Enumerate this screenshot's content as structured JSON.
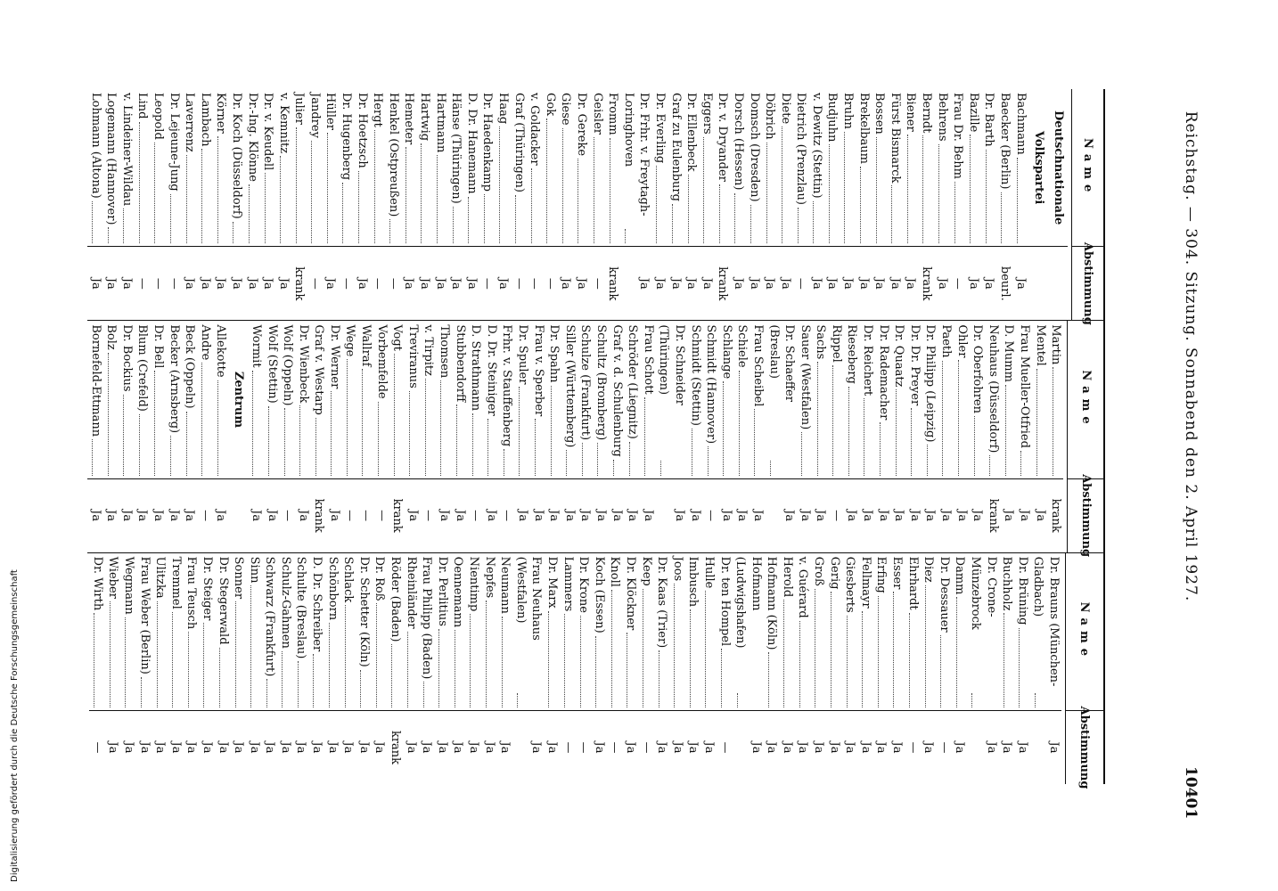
{
  "header": {
    "title": "Reichstag. — 304. Sitzung. Sonnabend den 2. April 1927.",
    "page": "10401"
  },
  "table": {
    "name_header": "Name",
    "vote_header": "Abstimmung",
    "columns": [
      [
        {
          "section": "Deutschnationale Volkspartei"
        },
        {
          "name": "Bachmann",
          "vote": "Ja"
        },
        {
          "name": "Baecker (Berlin)",
          "vote": "beurl."
        },
        {
          "name": "Dr. Barth",
          "vote": "Ja"
        },
        {
          "name": "Bazille",
          "vote": "Ja"
        },
        {
          "name": "Frau Dr. Behm",
          "vote": "—"
        },
        {
          "name": "Behrens",
          "vote": "Ja"
        },
        {
          "name": "Berndt",
          "vote": "krank"
        },
        {
          "name": "Biener",
          "vote": "Ja"
        },
        {
          "name": "Fürst Bismarck",
          "vote": "Ja"
        },
        {
          "name": "Bossen",
          "vote": "Ja"
        },
        {
          "name": "Brekelbaum",
          "vote": "Ja"
        },
        {
          "name": "Bruhn",
          "vote": "Ja"
        },
        {
          "name": "Budjuhn",
          "vote": "Ja"
        },
        {
          "name": "v. Dewitz (Stettin)",
          "vote": "Ja"
        },
        {
          "name": "Dietrich (Prenzlau)",
          "vote": "—"
        },
        {
          "name": "Diete",
          "vote": "Ja"
        },
        {
          "name": "Döbrich",
          "vote": "Ja"
        },
        {
          "name": "Domsch (Dresden)",
          "vote": "Ja"
        },
        {
          "name": "Dorsch (Hessen)",
          "vote": "Ja"
        },
        {
          "name": "Dr. v. Dryander",
          "vote": "krank"
        },
        {
          "name": "Eggers",
          "vote": "Ja"
        },
        {
          "name": "Dr. Ellenbeck",
          "vote": "Ja"
        },
        {
          "name": "Graf zu Eulenburg",
          "vote": "Ja"
        },
        {
          "name": "Dr. Everling",
          "vote": "Ja"
        },
        {
          "name": "Dr. Frhr. v. Freytagh-Loringhoven",
          "vote": "Ja"
        },
        {
          "name": "Fromm",
          "vote": "krank"
        },
        {
          "name": "Geisler",
          "vote": "—"
        },
        {
          "name": "Dr. Gereke",
          "vote": "Ja"
        },
        {
          "name": "Giese",
          "vote": "Ja"
        },
        {
          "name": "Gok",
          "vote": "—"
        },
        {
          "name": "v. Goldacker",
          "vote": "—"
        },
        {
          "name": "Graf (Thüringen)",
          "vote": "—"
        },
        {
          "name": "Haag",
          "vote": "Ja"
        },
        {
          "name": "Dr. Haedenkamp",
          "vote": "—"
        },
        {
          "name": "D. Dr. Hanemann",
          "vote": "Ja"
        },
        {
          "name": "Hänse (Thüringen)",
          "vote": "Ja"
        },
        {
          "name": "Hartmann",
          "vote": "Ja"
        },
        {
          "name": "Hartwig",
          "vote": "Ja"
        },
        {
          "name": "Hemeter",
          "vote": "Ja"
        },
        {
          "name": "Henkel (Ostpreußen)",
          "vote": "—"
        },
        {
          "name": "Hergt",
          "vote": "—"
        },
        {
          "name": "Dr. Hoetzsch",
          "vote": "Ja"
        },
        {
          "name": "Dr. Hugenberg",
          "vote": "—"
        },
        {
          "name": "Hüller",
          "vote": "Ja"
        },
        {
          "name": "Jandrey",
          "vote": "—"
        },
        {
          "name": "Julier",
          "vote": "krank"
        },
        {
          "name": "v. Kemnitz",
          "vote": "Ja"
        },
        {
          "name": "Dr. v. Keudell",
          "vote": "Ja"
        },
        {
          "name": "Dr.-Ing. Klönne",
          "vote": "Ja"
        },
        {
          "name": "Dr. Koch (Düsseldorf)",
          "vote": "Ja"
        },
        {
          "name": "Körner",
          "vote": "Ja"
        },
        {
          "name": "Lambach",
          "vote": "Ja"
        },
        {
          "name": "Laverrenz",
          "vote": "Ja"
        },
        {
          "name": "Dr. Lejeune-Jung",
          "vote": "—"
        },
        {
          "name": "Leopold",
          "vote": "—"
        },
        {
          "name": "Lind",
          "vote": "—"
        },
        {
          "name": "v. Lindeiner-Wildau",
          "vote": "Ja"
        },
        {
          "name": "Logemann (Hannover)",
          "vote": "Ja"
        },
        {
          "name": "Lohmann (Altona)",
          "vote": "Ja"
        }
      ],
      [
        {
          "name": "Martin",
          "vote": "krank"
        },
        {
          "name": "Mentel",
          "vote": "Ja"
        },
        {
          "name": "Frau Mueller-Otfried",
          "vote": "Ja"
        },
        {
          "name": "D. Mumm",
          "vote": "Ja"
        },
        {
          "name": "Neuhaus (Düsseldorf)",
          "vote": "krank"
        },
        {
          "name": "Dr. Oberfohren",
          "vote": "Ja"
        },
        {
          "name": "Ohler",
          "vote": "Ja"
        },
        {
          "name": "Paeth",
          "vote": "Ja"
        },
        {
          "name": "Dr. Philipp (Leipzig)",
          "vote": "Ja"
        },
        {
          "name": "Dr. Dr. Preyer",
          "vote": "Ja"
        },
        {
          "name": "Dr. Quaatz",
          "vote": "Ja"
        },
        {
          "name": "Dr. Rademacher",
          "vote": "Ja"
        },
        {
          "name": "Dr. Reichert",
          "vote": "Ja"
        },
        {
          "name": "Rieseberg",
          "vote": "Ja"
        },
        {
          "name": "Rippel",
          "vote": "—"
        },
        {
          "name": "Sachs",
          "vote": "Ja"
        },
        {
          "name": "Sauer (Westfalen)",
          "vote": "Ja"
        },
        {
          "name": "Dr. Schaeffer (Breslau)",
          "vote": "Ja"
        },
        {
          "name": "Frau Scheibel",
          "vote": "Ja"
        },
        {
          "name": "Schiele",
          "vote": "Ja"
        },
        {
          "name": "Schlange",
          "vote": "Ja"
        },
        {
          "name": "Schmidt (Hannover)",
          "vote": "—"
        },
        {
          "name": "Schmidt (Stettin)",
          "vote": "Ja"
        },
        {
          "name": "Dr. Schneider (Thüringen)",
          "vote": "Ja"
        },
        {
          "name": "Frau Schott",
          "vote": "Ja"
        },
        {
          "name": "Schröder (Liegnitz)",
          "vote": "Ja"
        },
        {
          "name": "Graf v. d. Schulenburg",
          "vote": "Ja"
        },
        {
          "name": "Schultz (Bromberg)",
          "vote": "Ja"
        },
        {
          "name": "Schulze (Frankfurt)",
          "vote": "Ja"
        },
        {
          "name": "Siller (Württemberg)",
          "vote": "Ja"
        },
        {
          "name": "Dr. Spahn",
          "vote": "Ja"
        },
        {
          "name": "Frau v. Sperber",
          "vote": "Ja"
        },
        {
          "name": "Dr. Spuler",
          "vote": "Ja"
        },
        {
          "name": "Frhr. v. Stauffenberg",
          "vote": "—"
        },
        {
          "name": "D. Dr. Steiniger",
          "vote": "Ja"
        },
        {
          "name": "D. Strathmann",
          "vote": "—"
        },
        {
          "name": "Stubbendorff",
          "vote": "Ja"
        },
        {
          "name": "Thomsen",
          "vote": "Ja"
        },
        {
          "name": "v. Tirpitz",
          "vote": "—"
        },
        {
          "name": "Treviranus",
          "vote": "Ja"
        },
        {
          "name": "Vogt",
          "vote": "krank"
        },
        {
          "name": "Vorbemfelde",
          "vote": "—"
        },
        {
          "name": "Wallraf",
          "vote": "—"
        },
        {
          "name": "Wege",
          "vote": "—"
        },
        {
          "name": "Dr. Werner",
          "vote": "Ja"
        },
        {
          "name": "Graf v. Westarp",
          "vote": "krank"
        },
        {
          "name": "Dr. Wienbeck",
          "vote": "Ja"
        },
        {
          "name": "Wolf (Oppeln)",
          "vote": "—"
        },
        {
          "name": "Wolf (Stettin)",
          "vote": "Ja"
        },
        {
          "name": "Wormit",
          "vote": "Ja"
        },
        {
          "section": "Zentrum"
        },
        {
          "name": "Allekotte",
          "vote": "Ja"
        },
        {
          "name": "Andre",
          "vote": "—"
        },
        {
          "name": "Beck (Oppeln)",
          "vote": "Ja"
        },
        {
          "name": "Becker (Arnsberg)",
          "vote": "Ja"
        },
        {
          "name": "Dr. Bell",
          "vote": "Ja"
        },
        {
          "name": "Blum (Crefeld)",
          "vote": "Ja"
        },
        {
          "name": "Dr. Bockius",
          "vote": "Ja"
        },
        {
          "name": "Bolz",
          "vote": "Ja"
        },
        {
          "name": "Bornefeld-Ettmann",
          "vote": "Ja"
        }
      ],
      [
        {
          "name": "Dr. Brauns (München-Gladbach)",
          "vote": "Ja"
        },
        {
          "name": "Dr. Brüning",
          "vote": "Ja"
        },
        {
          "name": "Buchholz",
          "vote": "Ja"
        },
        {
          "name": "Dr. Crone-Münzebrock",
          "vote": "Ja"
        },
        {
          "name": "Damm",
          "vote": "Ja"
        },
        {
          "name": "Dr. Dessauer",
          "vote": "—"
        },
        {
          "name": "Diez",
          "vote": "Ja"
        },
        {
          "name": "Ehrhardt",
          "vote": "—"
        },
        {
          "name": "Esser",
          "vote": "Ja"
        },
        {
          "name": "Erfing",
          "vote": "Ja"
        },
        {
          "name": "Fellmayr",
          "vote": "Ja"
        },
        {
          "name": "Giesberts",
          "vote": "Ja"
        },
        {
          "name": "Gerig",
          "vote": "Ja"
        },
        {
          "name": "Groß",
          "vote": "Ja"
        },
        {
          "name": "v. Guérard",
          "vote": "Ja"
        },
        {
          "name": "Herold",
          "vote": "Ja"
        },
        {
          "name": "Hofmann (Köln)",
          "vote": "Ja"
        },
        {
          "name": "Hofmann (Ludwigshafen)",
          "vote": "Ja"
        },
        {
          "name": "Dr. ten Hompel",
          "vote": "—"
        },
        {
          "name": "Hulle",
          "vote": "Ja"
        },
        {
          "name": "Imbusch",
          "vote": "Ja"
        },
        {
          "name": "Joos",
          "vote": "Ja"
        },
        {
          "name": "Dr. Kaas (Trier)",
          "vote": "Ja"
        },
        {
          "name": "Keep",
          "vote": "—"
        },
        {
          "name": "Dr. Klöckner",
          "vote": "Ja"
        },
        {
          "name": "Knoll",
          "vote": "—"
        },
        {
          "name": "Koch (Essen)",
          "vote": "Ja"
        },
        {
          "name": "Dr. Krone",
          "vote": "—"
        },
        {
          "name": "Lammers",
          "vote": "—"
        },
        {
          "name": "Dr. Marx",
          "vote": "Ja"
        },
        {
          "name": "Frau Neuhaus (Westfalen)",
          "vote": "Ja"
        },
        {
          "name": "Neumann",
          "vote": "Ja"
        },
        {
          "name": "Nepfes",
          "vote": "Ja"
        },
        {
          "name": "Nientimp",
          "vote": "Ja"
        },
        {
          "name": "Oennemann",
          "vote": "Ja"
        },
        {
          "name": "Dr. Perlitius",
          "vote": "Ja"
        },
        {
          "name": "Frau Philipp (Baden)",
          "vote": "Ja"
        },
        {
          "name": "Rheinländer",
          "vote": "Ja"
        },
        {
          "name": "Röder (Baden)",
          "vote": "krank"
        },
        {
          "name": "Dr. Roß",
          "vote": "Ja"
        },
        {
          "name": "Dr. Schetter (Köln)",
          "vote": "Ja"
        },
        {
          "name": "Schlack",
          "vote": "Ja"
        },
        {
          "name": "Schönborn",
          "vote": "Ja"
        },
        {
          "name": "D. Dr. Schreiber",
          "vote": "Ja"
        },
        {
          "name": "Schulte (Breslau)",
          "vote": "Ja"
        },
        {
          "name": "Schulz-Gahmen",
          "vote": "Ja"
        },
        {
          "name": "Schwarz (Frankfurt)",
          "vote": "Ja"
        },
        {
          "name": "Sinn",
          "vote": "Ja"
        },
        {
          "name": "Sonner",
          "vote": "Ja"
        },
        {
          "name": "Dr. Stegerwald",
          "vote": "Ja"
        },
        {
          "name": "Dr. Steiger",
          "vote": "Ja"
        },
        {
          "name": "Frau Teusch",
          "vote": "Ja"
        },
        {
          "name": "Tremmel",
          "vote": "Ja"
        },
        {
          "name": "Ulitzka",
          "vote": "Ja"
        },
        {
          "name": "Frau Weber (Berlin)",
          "vote": "Ja"
        },
        {
          "name": "Wegmann",
          "vote": "Ja"
        },
        {
          "name": "Wieber",
          "vote": "Ja"
        },
        {
          "name": "Dr. Wirth",
          "vote": "—"
        }
      ]
    ]
  },
  "footer": {
    "note": "Digitalisierung gefördert durch die Deutsche Forschungsgemeinschaft"
  }
}
